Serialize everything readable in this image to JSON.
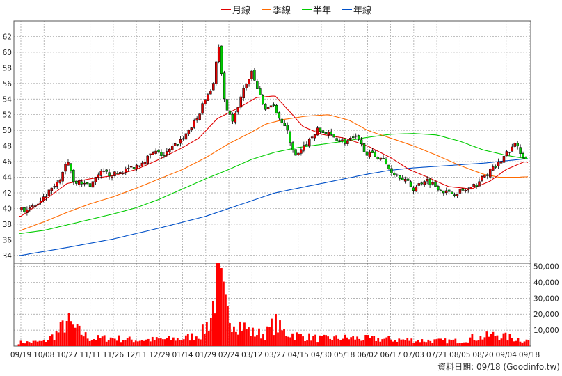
{
  "chart_data": {
    "type": "candlestick-with-volume",
    "legend": [
      {
        "name": "月線",
        "color": "#e00000"
      },
      {
        "name": "季線",
        "color": "#ff6a00"
      },
      {
        "name": "半年",
        "color": "#00cc00"
      },
      {
        "name": "年線",
        "color": "#0050c8"
      }
    ],
    "price_axis": {
      "ticks": [
        34,
        36,
        38,
        40,
        42,
        44,
        46,
        48,
        50,
        52,
        54,
        56,
        58,
        60,
        62
      ],
      "ylim": [
        33,
        64
      ]
    },
    "volume_axis": {
      "ticks": [
        10000,
        20000,
        30000,
        40000,
        50000
      ],
      "tick_labels": [
        "10,000",
        "20,000",
        "30,000",
        "40,000",
        "50,000"
      ],
      "ylim": [
        0,
        52000
      ]
    },
    "x_labels": [
      "09/19",
      "10/08",
      "10/27",
      "11/11",
      "11/26",
      "12/11",
      "12/29",
      "01/14",
      "01/29",
      "02/24",
      "03/12",
      "03/27",
      "04/15",
      "04/30",
      "05/18",
      "06/02",
      "06/17",
      "07/03",
      "07/21",
      "08/05",
      "08/20",
      "09/04",
      "09/18"
    ],
    "candle_colors": {
      "up": "#e00000",
      "down": "#00cc00"
    },
    "volume_color": "#ff0000",
    "price_anchors": [
      {
        "x": 0,
        "v": 39.8
      },
      {
        "x": 0.8,
        "v": 40.5
      },
      {
        "x": 1.2,
        "v": 42.0
      },
      {
        "x": 1.7,
        "v": 43.5
      },
      {
        "x": 2.0,
        "v": 46.5
      },
      {
        "x": 2.3,
        "v": 43.5
      },
      {
        "x": 3.0,
        "v": 43.0
      },
      {
        "x": 3.5,
        "v": 44.6
      },
      {
        "x": 4.0,
        "v": 44.3
      },
      {
        "x": 5.0,
        "v": 45.5
      },
      {
        "x": 5.8,
        "v": 47.2
      },
      {
        "x": 6.2,
        "v": 46.8
      },
      {
        "x": 7.0,
        "v": 49.0
      },
      {
        "x": 7.6,
        "v": 51.3
      },
      {
        "x": 8.0,
        "v": 54.2
      },
      {
        "x": 8.3,
        "v": 55.5
      },
      {
        "x": 8.55,
        "v": 61.0
      },
      {
        "x": 8.85,
        "v": 52.5
      },
      {
        "x": 9.2,
        "v": 51.2
      },
      {
        "x": 9.6,
        "v": 55.0
      },
      {
        "x": 10.0,
        "v": 57.3
      },
      {
        "x": 10.5,
        "v": 53.0
      },
      {
        "x": 11.0,
        "v": 52.8
      },
      {
        "x": 11.5,
        "v": 50.0
      },
      {
        "x": 11.9,
        "v": 46.5
      },
      {
        "x": 12.3,
        "v": 48.0
      },
      {
        "x": 12.8,
        "v": 50.0
      },
      {
        "x": 13.3,
        "v": 49.5
      },
      {
        "x": 14.0,
        "v": 48.5
      },
      {
        "x": 14.5,
        "v": 49.0
      },
      {
        "x": 15.0,
        "v": 47.0
      },
      {
        "x": 15.6,
        "v": 46.5
      },
      {
        "x": 16.0,
        "v": 44.8
      },
      {
        "x": 16.5,
        "v": 44.0
      },
      {
        "x": 17.0,
        "v": 42.5
      },
      {
        "x": 17.5,
        "v": 43.8
      },
      {
        "x": 18.0,
        "v": 42.8
      },
      {
        "x": 18.5,
        "v": 41.9
      },
      {
        "x": 19.0,
        "v": 42.2
      },
      {
        "x": 19.5,
        "v": 42.5
      },
      {
        "x": 20.0,
        "v": 44.0
      },
      {
        "x": 20.6,
        "v": 45.5
      },
      {
        "x": 21.0,
        "v": 47.0
      },
      {
        "x": 21.4,
        "v": 48.2
      },
      {
        "x": 21.9,
        "v": 46.0
      },
      {
        "x": 22.3,
        "v": 45.0
      },
      {
        "x": 22.7,
        "v": 44.3
      },
      {
        "x": 23.0,
        "v": 44.0
      }
    ],
    "ma_month": [
      {
        "x": 0,
        "v": 39.0
      },
      {
        "x": 1.0,
        "v": 41.0
      },
      {
        "x": 2.0,
        "v": 43.2
      },
      {
        "x": 3.0,
        "v": 43.8
      },
      {
        "x": 4.0,
        "v": 44.2
      },
      {
        "x": 5.0,
        "v": 45.0
      },
      {
        "x": 6.0,
        "v": 46.3
      },
      {
        "x": 7.0,
        "v": 47.8
      },
      {
        "x": 7.7,
        "v": 49.0
      },
      {
        "x": 8.5,
        "v": 51.5
      },
      {
        "x": 9.5,
        "v": 53.0
      },
      {
        "x": 10.2,
        "v": 54.2
      },
      {
        "x": 11.0,
        "v": 54.4
      },
      {
        "x": 11.6,
        "v": 52.5
      },
      {
        "x": 12.2,
        "v": 50.5
      },
      {
        "x": 13.0,
        "v": 49.5
      },
      {
        "x": 14.0,
        "v": 49.0
      },
      {
        "x": 15.0,
        "v": 48.0
      },
      {
        "x": 16.0,
        "v": 46.5
      },
      {
        "x": 16.8,
        "v": 45.0
      },
      {
        "x": 17.6,
        "v": 44.0
      },
      {
        "x": 18.5,
        "v": 42.8
      },
      {
        "x": 19.5,
        "v": 42.5
      },
      {
        "x": 20.3,
        "v": 43.5
      },
      {
        "x": 21.0,
        "v": 45.0
      },
      {
        "x": 21.8,
        "v": 46.0
      },
      {
        "x": 22.4,
        "v": 45.5
      },
      {
        "x": 23.0,
        "v": 44.5
      }
    ],
    "ma_quarter": [
      {
        "x": 0,
        "v": 37.2
      },
      {
        "x": 1.0,
        "v": 38.3
      },
      {
        "x": 2.0,
        "v": 39.5
      },
      {
        "x": 3.0,
        "v": 40.6
      },
      {
        "x": 4.0,
        "v": 41.5
      },
      {
        "x": 5.0,
        "v": 42.6
      },
      {
        "x": 6.0,
        "v": 43.8
      },
      {
        "x": 7.0,
        "v": 45.0
      },
      {
        "x": 8.0,
        "v": 46.5
      },
      {
        "x": 9.0,
        "v": 48.3
      },
      {
        "x": 10.0,
        "v": 49.8
      },
      {
        "x": 10.6,
        "v": 50.8
      },
      {
        "x": 11.4,
        "v": 51.4
      },
      {
        "x": 12.3,
        "v": 51.8
      },
      {
        "x": 13.3,
        "v": 52.0
      },
      {
        "x": 14.2,
        "v": 51.3
      },
      {
        "x": 15.0,
        "v": 50.0
      },
      {
        "x": 16.0,
        "v": 49.0
      },
      {
        "x": 17.0,
        "v": 48.0
      },
      {
        "x": 18.0,
        "v": 46.8
      },
      {
        "x": 19.0,
        "v": 45.5
      },
      {
        "x": 20.0,
        "v": 44.4
      },
      {
        "x": 20.7,
        "v": 44.0
      },
      {
        "x": 21.5,
        "v": 44.0
      },
      {
        "x": 22.2,
        "v": 44.1
      },
      {
        "x": 23.0,
        "v": 44.1
      }
    ],
    "ma_half": [
      {
        "x": 0,
        "v": 36.8
      },
      {
        "x": 1.0,
        "v": 37.2
      },
      {
        "x": 2.0,
        "v": 37.9
      },
      {
        "x": 3.0,
        "v": 38.6
      },
      {
        "x": 4.0,
        "v": 39.3
      },
      {
        "x": 5.0,
        "v": 40.1
      },
      {
        "x": 6.0,
        "v": 41.2
      },
      {
        "x": 7.0,
        "v": 42.5
      },
      {
        "x": 8.0,
        "v": 43.8
      },
      {
        "x": 9.0,
        "v": 45.0
      },
      {
        "x": 10.0,
        "v": 46.3
      },
      {
        "x": 11.0,
        "v": 47.2
      },
      {
        "x": 12.0,
        "v": 47.8
      },
      {
        "x": 13.0,
        "v": 48.2
      },
      {
        "x": 14.0,
        "v": 48.6
      },
      {
        "x": 15.0,
        "v": 49.1
      },
      {
        "x": 16.0,
        "v": 49.5
      },
      {
        "x": 17.0,
        "v": 49.6
      },
      {
        "x": 18.0,
        "v": 49.4
      },
      {
        "x": 19.0,
        "v": 48.6
      },
      {
        "x": 20.0,
        "v": 47.5
      },
      {
        "x": 21.0,
        "v": 46.8
      },
      {
        "x": 22.0,
        "v": 46.3
      },
      {
        "x": 23.0,
        "v": 46.0
      }
    ],
    "ma_year": [
      {
        "x": 0,
        "v": 34.0
      },
      {
        "x": 2.0,
        "v": 35.0
      },
      {
        "x": 4.0,
        "v": 36.1
      },
      {
        "x": 6.0,
        "v": 37.5
      },
      {
        "x": 8.0,
        "v": 39.0
      },
      {
        "x": 9.0,
        "v": 40.0
      },
      {
        "x": 10.0,
        "v": 41.0
      },
      {
        "x": 11.0,
        "v": 42.0
      },
      {
        "x": 12.0,
        "v": 42.6
      },
      {
        "x": 13.0,
        "v": 43.2
      },
      {
        "x": 14.0,
        "v": 43.8
      },
      {
        "x": 15.0,
        "v": 44.4
      },
      {
        "x": 16.0,
        "v": 44.9
      },
      {
        "x": 17.0,
        "v": 45.2
      },
      {
        "x": 18.0,
        "v": 45.4
      },
      {
        "x": 19.0,
        "v": 45.6
      },
      {
        "x": 20.0,
        "v": 45.8
      },
      {
        "x": 21.0,
        "v": 46.1
      },
      {
        "x": 22.0,
        "v": 46.4
      },
      {
        "x": 23.0,
        "v": 46.7
      }
    ],
    "volume_anchors": [
      {
        "x": 0,
        "v": 2500
      },
      {
        "x": 1.0,
        "v": 3000
      },
      {
        "x": 1.6,
        "v": 9000
      },
      {
        "x": 2.0,
        "v": 17000
      },
      {
        "x": 2.3,
        "v": 12000
      },
      {
        "x": 3.0,
        "v": 5000
      },
      {
        "x": 4.0,
        "v": 5500
      },
      {
        "x": 5.0,
        "v": 4000
      },
      {
        "x": 6.0,
        "v": 4500
      },
      {
        "x": 7.0,
        "v": 5000
      },
      {
        "x": 7.8,
        "v": 8000
      },
      {
        "x": 8.2,
        "v": 18000
      },
      {
        "x": 8.55,
        "v": 47000
      },
      {
        "x": 8.9,
        "v": 22000
      },
      {
        "x": 9.3,
        "v": 17000
      },
      {
        "x": 10.0,
        "v": 9000
      },
      {
        "x": 10.6,
        "v": 8000
      },
      {
        "x": 11.0,
        "v": 16000
      },
      {
        "x": 11.3,
        "v": 10000
      },
      {
        "x": 12.0,
        "v": 7000
      },
      {
        "x": 13.0,
        "v": 5000
      },
      {
        "x": 14.0,
        "v": 5500
      },
      {
        "x": 15.0,
        "v": 5000
      },
      {
        "x": 16.0,
        "v": 4500
      },
      {
        "x": 17.0,
        "v": 4000
      },
      {
        "x": 18.0,
        "v": 3500
      },
      {
        "x": 19.0,
        "v": 3500
      },
      {
        "x": 19.5,
        "v": 5500
      },
      {
        "x": 20.0,
        "v": 6000
      },
      {
        "x": 20.6,
        "v": 8000
      },
      {
        "x": 21.0,
        "v": 6000
      },
      {
        "x": 22.0,
        "v": 3500
      },
      {
        "x": 23.0,
        "v": 2500
      }
    ],
    "footer": "資料日期: 09/18  (Goodinfo.tw)"
  }
}
